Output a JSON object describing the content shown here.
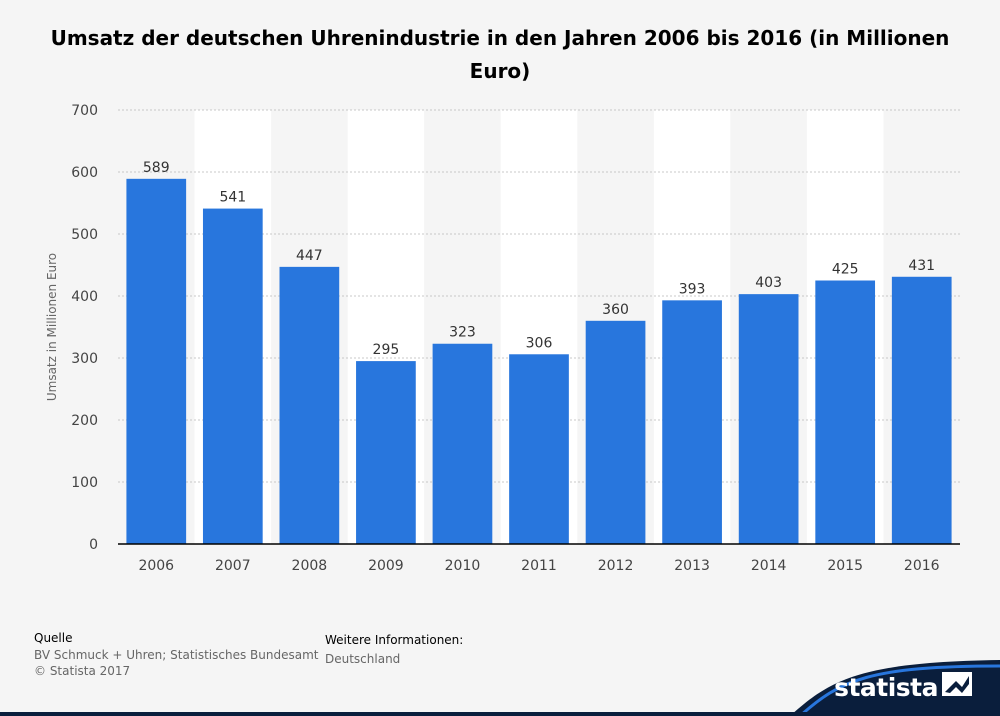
{
  "title": "Umsatz der deutschen Uhrenindustrie in den Jahren 2006 bis 2016 (in Millionen Euro)",
  "chart_data": {
    "type": "bar",
    "title": "Umsatz der deutschen Uhrenindustrie in den Jahren 2006 bis 2016 (in Millionen Euro)",
    "categories": [
      "2006",
      "2007",
      "2008",
      "2009",
      "2010",
      "2011",
      "2012",
      "2013",
      "2014",
      "2015",
      "2016"
    ],
    "values": [
      589,
      541,
      447,
      295,
      323,
      306,
      360,
      393,
      403,
      425,
      431
    ],
    "xlabel": "",
    "ylabel": "Umsatz in Millionen Euro",
    "ylim": [
      0,
      700
    ],
    "yticks": [
      0,
      100,
      200,
      300,
      400,
      500,
      600,
      700
    ],
    "grid": true,
    "bar_color": "#2876dd",
    "data_labels": true
  },
  "footer": {
    "source_heading": "Quelle",
    "source_text": "BV Schmuck + Uhren; Statistisches Bundesamt",
    "copyright": "© Statista 2017",
    "info_heading": "Weitere Informationen:",
    "info_text": "Deutschland"
  },
  "brand": {
    "name": "statista",
    "logo_icon": "statista-logo-icon",
    "color": "#0a1e3c"
  }
}
